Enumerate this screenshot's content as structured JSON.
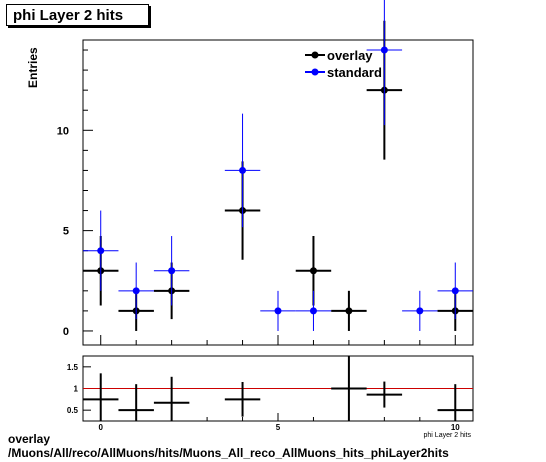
{
  "title": "phi Layer 2 hits",
  "footer": {
    "line1": "overlay",
    "line2": "/Muons/All/reco/AllMuons/hits/Muons_All_reco_AllMuons_hits_phiLayer2hits"
  },
  "colors": {
    "overlay": "#000000",
    "standard": "#0000ff",
    "ratio_line": "#cc0000"
  },
  "chart_data": [
    {
      "type": "scatter",
      "title": "phi Layer 2 hits",
      "ylabel": "Entries",
      "xlabel": "phi Layer 2 hits",
      "xlim": [
        -0.5,
        10.5
      ],
      "ylim": [
        -0.7,
        14.5
      ],
      "x_ticks": [
        0,
        5,
        10
      ],
      "y_ticks": [
        0,
        5,
        10
      ],
      "legend": {
        "position": "top-right",
        "entries": [
          "overlay",
          "standard"
        ]
      },
      "series": [
        {
          "name": "overlay",
          "points": [
            {
              "x": 0,
              "y": 3,
              "err": 1.73
            },
            {
              "x": 1,
              "y": 1,
              "err": 1
            },
            {
              "x": 2,
              "y": 2,
              "err": 1.41
            },
            {
              "x": 4,
              "y": 6,
              "err": 2.45
            },
            {
              "x": 6,
              "y": 3,
              "err": 1.73
            },
            {
              "x": 7,
              "y": 1,
              "err": 1
            },
            {
              "x": 8,
              "y": 12,
              "err": 3.46
            },
            {
              "x": 10,
              "y": 1,
              "err": 1
            }
          ]
        },
        {
          "name": "standard",
          "points": [
            {
              "x": 0,
              "y": 4,
              "err": 2
            },
            {
              "x": 1,
              "y": 2,
              "err": 1.41
            },
            {
              "x": 2,
              "y": 3,
              "err": 1.73
            },
            {
              "x": 4,
              "y": 8,
              "err": 2.83
            },
            {
              "x": 5,
              "y": 1,
              "err": 1
            },
            {
              "x": 6,
              "y": 1,
              "err": 1
            },
            {
              "x": 8,
              "y": 14,
              "err": 3.74
            },
            {
              "x": 9,
              "y": 1,
              "err": 1
            },
            {
              "x": 10,
              "y": 2,
              "err": 1.41
            }
          ]
        }
      ]
    },
    {
      "type": "scatter",
      "title": "",
      "ylabel": "",
      "xlim": [
        -0.5,
        10.5
      ],
      "ylim": [
        0.25,
        1.75
      ],
      "x_ticks": [
        0,
        5,
        10
      ],
      "y_ticks": [
        0.5,
        1,
        1.5
      ],
      "reference_line": 1,
      "series": [
        {
          "name": "ratio",
          "points": [
            {
              "x": 0,
              "y": 0.75,
              "err": 0.6
            },
            {
              "x": 1,
              "y": 0.5,
              "err": 0.6
            },
            {
              "x": 2,
              "y": 0.67,
              "err": 0.6
            },
            {
              "x": 4,
              "y": 0.75,
              "err": 0.4
            },
            {
              "x": 7,
              "y": 1.0,
              "err": 0.8
            },
            {
              "x": 8,
              "y": 0.86,
              "err": 0.3
            },
            {
              "x": 10,
              "y": 0.5,
              "err": 0.6
            }
          ]
        }
      ]
    }
  ]
}
